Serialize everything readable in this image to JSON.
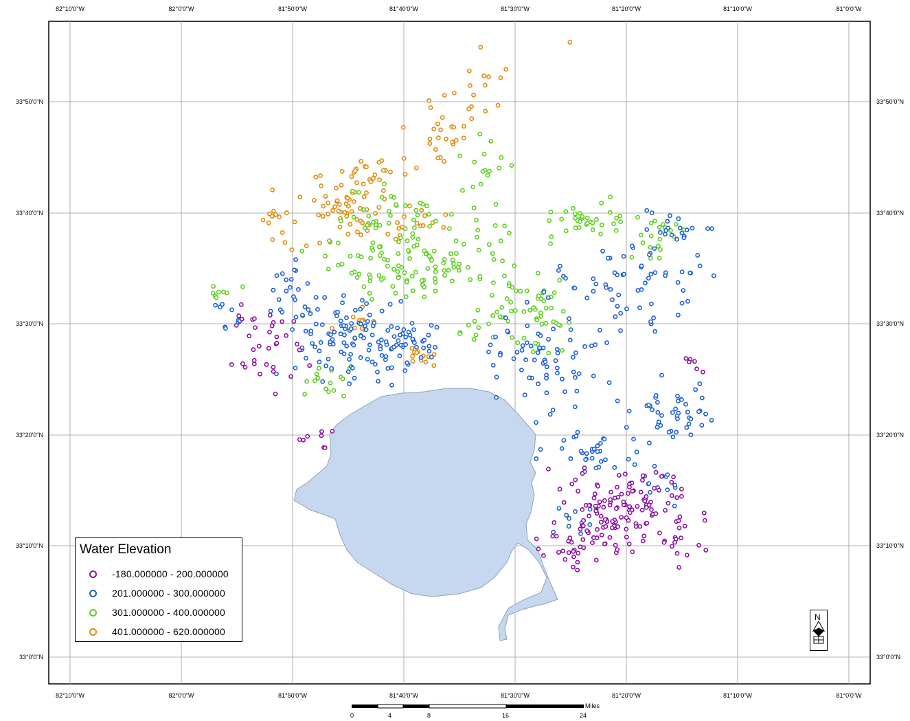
{
  "map": {
    "lon_ticks": [
      "82°10'0\"W",
      "82°0'0\"W",
      "81°50'0\"W",
      "81°40'0\"W",
      "81°30'0\"W",
      "81°20'0\"W",
      "81°10'0\"W",
      "81°0'0\"W"
    ],
    "lat_ticks": [
      "33°50'0\"N",
      "33°40'0\"N",
      "33°30'0\"N",
      "33°20'0\"N",
      "33°10'0\"N",
      "33°0'0\"N"
    ]
  },
  "legend": {
    "title": "Water Elevation",
    "classes": [
      {
        "label": "-180.000000 - 200.000000",
        "color": "#8a0fa0"
      },
      {
        "label": "201.000000 - 300.000000",
        "color": "#1a5fd6"
      },
      {
        "label": "301.000000 - 400.000000",
        "color": "#5ccf1c"
      },
      {
        "label": "401.000000 - 620.000000",
        "color": "#e08a0c"
      }
    ]
  },
  "scale_bar": {
    "unit": "Miles",
    "labels": [
      "0",
      "4",
      "8",
      "16",
      "24"
    ]
  },
  "north_arrow": {
    "letter": "N"
  },
  "colors": {
    "water": "#c5d8f0",
    "water_outline": "#8fa0b8",
    "grid": "#9a9a9a"
  }
}
